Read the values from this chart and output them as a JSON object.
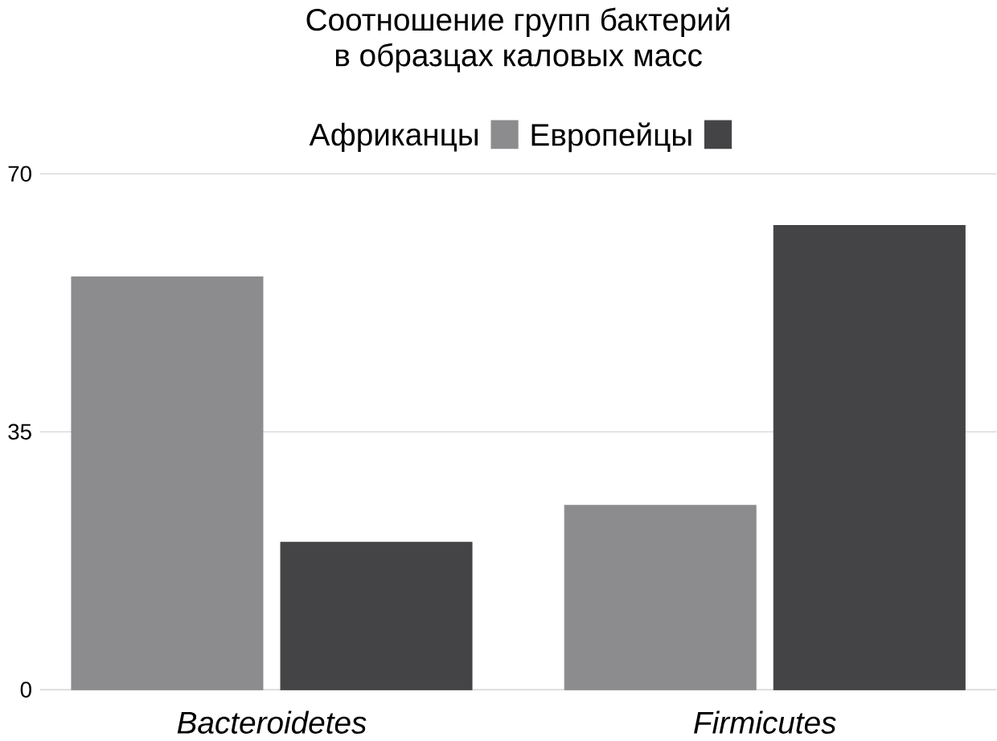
{
  "chart_data": {
    "type": "bar",
    "title": "Соотношение групп бактерий\nв образцах каловых масс",
    "categories": [
      "Bacteroidetes",
      "Firmicutes"
    ],
    "series": [
      {
        "name": "Африканцы",
        "color": "#8c8c8e",
        "values": [
          56,
          25
        ]
      },
      {
        "name": "Европейцы",
        "color": "#444446",
        "values": [
          20,
          63
        ]
      }
    ],
    "ylim": [
      0,
      70
    ],
    "yticks": [
      0,
      35,
      70
    ],
    "grid": "y",
    "legend": "top"
  }
}
